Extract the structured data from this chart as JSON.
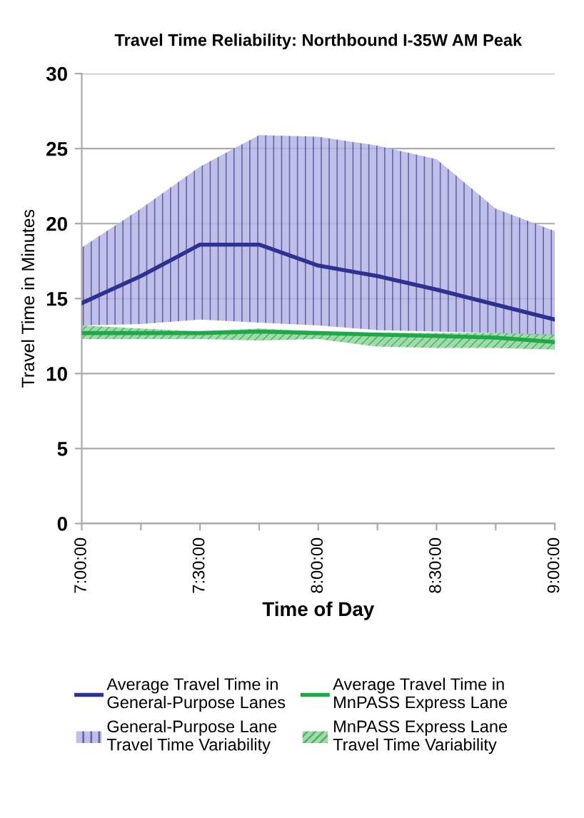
{
  "chart_data": {
    "type": "line",
    "title": "Travel Time Reliability: Northbound I-35W AM Peak",
    "xlabel": "Time of Day",
    "ylabel": "Travel Time in Minutes",
    "x": [
      7,
      7.25,
      7.5,
      7.75,
      8,
      8.25,
      8.5,
      8.75,
      9
    ],
    "series": [
      {
        "name": "Average Travel Time in General-Purpose Lanes",
        "type": "line",
        "color": "#2e3192",
        "values": [
          14.7,
          16.5,
          18.6,
          18.6,
          17.2,
          16.5,
          15.6,
          14.6,
          13.6
        ],
        "lower": [
          13.2,
          13.3,
          13.6,
          13.4,
          13.2,
          12.9,
          12.8,
          12.7,
          12.5
        ],
        "upper": [
          18.4,
          21.0,
          23.8,
          25.9,
          25.8,
          25.2,
          24.3,
          21.0,
          19.5
        ]
      },
      {
        "name": "Average Travel Time in MnPASS Express Lane",
        "type": "line",
        "color": "#1fa84a",
        "values": [
          12.7,
          12.7,
          12.7,
          12.8,
          12.7,
          12.6,
          12.5,
          12.4,
          12.1
        ],
        "lower": [
          12.3,
          12.3,
          12.3,
          12.2,
          12.3,
          11.8,
          11.7,
          11.7,
          11.6
        ],
        "upper": [
          13.2,
          13.0,
          12.8,
          13.0,
          12.8,
          12.7,
          12.7,
          12.7,
          12.6
        ]
      }
    ],
    "annotations": [
      "General-Purpose Lane Travel Time Variability",
      "MnPASS Express Lane Travel Time Variability"
    ],
    "xlim": [
      7,
      9
    ],
    "xticks": [
      {
        "value": 7,
        "label": "7:00:00"
      },
      {
        "value": 7.25,
        "label": null
      },
      {
        "value": 7.5,
        "label": "7:30:00"
      },
      {
        "value": 7.75,
        "label": null
      },
      {
        "value": 8,
        "label": "8:00:00"
      },
      {
        "value": 8.25,
        "label": null
      },
      {
        "value": 8.5,
        "label": "8:30:00"
      },
      {
        "value": 8.75,
        "label": null
      },
      {
        "value": 9,
        "label": "9:00:00"
      }
    ],
    "ylim": [
      0,
      30
    ],
    "yticks": [
      0,
      5,
      10,
      15,
      20,
      25,
      30
    ],
    "grid": "y",
    "legend": "bottom",
    "line_style": "solid",
    "marker": "none"
  }
}
